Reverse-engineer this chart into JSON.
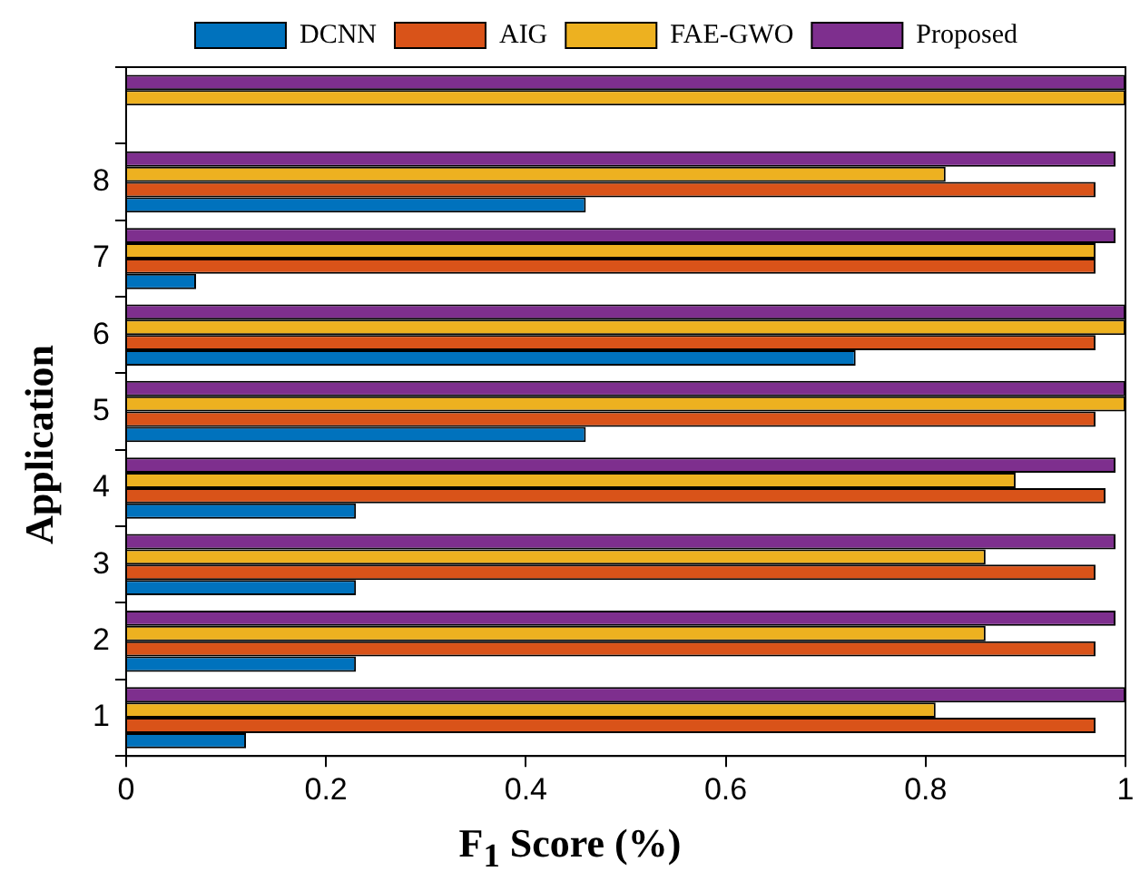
{
  "chart_data": {
    "type": "bar",
    "orientation": "horizontal",
    "xlabel": "F$_{1}$ Score (%)",
    "ylabel": "Application",
    "categories": [
      null,
      "8",
      "7",
      "6",
      "5",
      "4",
      "3",
      "2",
      "1"
    ],
    "series": [
      {
        "name": "DCNN",
        "color": "#0072bd",
        "values": [
          null,
          0.46,
          0.07,
          0.73,
          0.46,
          0.23,
          0.23,
          0.23,
          0.12
        ]
      },
      {
        "name": "AIG",
        "color": "#d95319",
        "values": [
          null,
          0.97,
          0.97,
          0.97,
          0.97,
          0.98,
          0.97,
          0.97,
          0.97
        ]
      },
      {
        "name": "FAE-GWO",
        "color": "#edb120",
        "values": [
          1.0,
          0.82,
          0.97,
          1.0,
          1.0,
          0.89,
          0.86,
          0.86,
          0.81
        ]
      },
      {
        "name": "Proposed",
        "color": "#7e2f8e",
        "values": [
          1.0,
          0.99,
          0.99,
          1.0,
          1.0,
          0.99,
          0.99,
          0.99,
          1.0
        ]
      }
    ],
    "xlim": [
      0,
      1
    ],
    "xticks": [
      0,
      0.2,
      0.4,
      0.6,
      0.8,
      1
    ],
    "grid": false,
    "legend": "top"
  }
}
